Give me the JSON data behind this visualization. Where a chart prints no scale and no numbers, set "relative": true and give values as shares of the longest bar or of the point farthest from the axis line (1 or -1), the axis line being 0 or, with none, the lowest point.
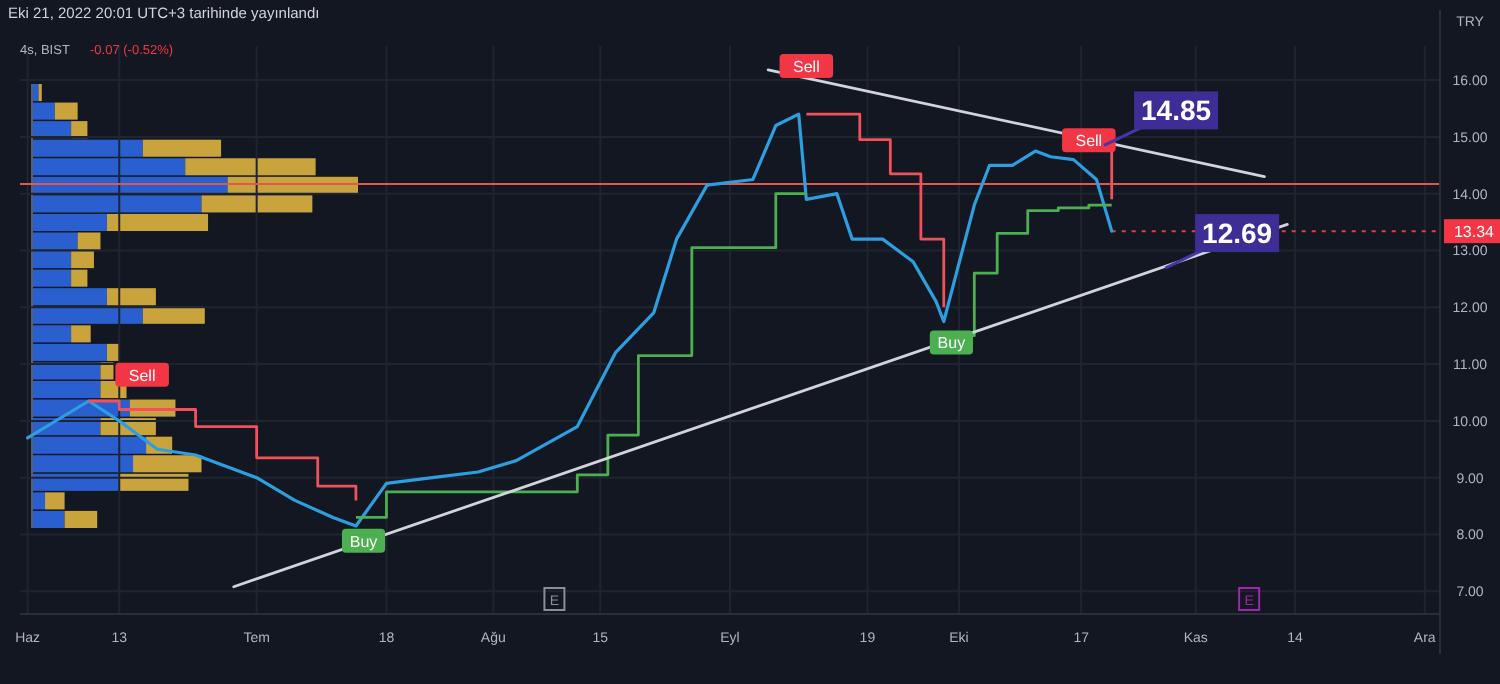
{
  "chart_data": [
    {
      "type": "line",
      "title": "Eki 21, 2022 20:01 UTC+3 tarihinde yayınlandı",
      "subtitle": "4s, BIST",
      "ylabel": "TRY",
      "annotations": [
        "-0.07 (-0.52%)",
        {
          "text": "14.85",
          "x": "2022-10-20",
          "y": 14.85
        },
        {
          "text": "12.69",
          "x": "2022-10-28",
          "y": 12.69
        },
        {
          "text": "E",
          "x": "2022-08-09"
        },
        {
          "text": "E",
          "x": "2022-11-08"
        }
      ],
      "xlim": [
        "2022-05-31",
        "2022-12-03"
      ],
      "xticks": [
        {
          "value": "2022-06-01",
          "label": "Haz"
        },
        {
          "value": "2022-06-13",
          "label": "13"
        },
        {
          "value": "2022-07-01",
          "label": "Tem"
        },
        {
          "value": "2022-07-18",
          "label": "18"
        },
        {
          "value": "2022-08-01",
          "label": "Ağu"
        },
        {
          "value": "2022-08-15",
          "label": "15"
        },
        {
          "value": "2022-09-01",
          "label": "Eyl"
        },
        {
          "value": "2022-09-19",
          "label": "19"
        },
        {
          "value": "2022-10-01",
          "label": "Eki"
        },
        {
          "value": "2022-10-17",
          "label": "17"
        },
        {
          "value": "2022-11-01",
          "label": "Kas"
        },
        {
          "value": "2022-11-14",
          "label": "14"
        },
        {
          "value": "2022-12-01",
          "label": "Ara"
        }
      ],
      "ylim": [
        6.6,
        16.6
      ],
      "yticks": [
        {
          "value": 7,
          "label": "7.00"
        },
        {
          "value": 8,
          "label": "8.00"
        },
        {
          "value": 9,
          "label": "9.00"
        },
        {
          "value": 10,
          "label": "10.00"
        },
        {
          "value": 11,
          "label": "11.00"
        },
        {
          "value": 12,
          "label": "12.00"
        },
        {
          "value": 13,
          "label": "13.00"
        },
        {
          "value": 14,
          "label": "14.00"
        },
        {
          "value": 15,
          "label": "15.00"
        },
        {
          "value": 16,
          "label": "16.00"
        }
      ],
      "grid": true,
      "ref_lines": [
        {
          "axis": "y",
          "value": 14.17,
          "color": "#e0584f"
        },
        {
          "axis": "y",
          "value": 13.34,
          "label": "13.34",
          "color": "#f23645",
          "line_style": "dotted"
        }
      ],
      "series": [
        {
          "type": "line",
          "color": "#2d9fe0",
          "x": [
            "2022-06-01",
            "2022-06-09",
            "2022-06-13",
            "2022-06-18",
            "2022-06-23",
            "2022-07-01",
            "2022-07-06",
            "2022-07-11",
            "2022-07-14",
            "2022-07-18",
            "2022-07-24",
            "2022-07-30",
            "2022-08-04",
            "2022-08-12",
            "2022-08-17",
            "2022-08-22",
            "2022-08-25",
            "2022-08-29",
            "2022-09-04",
            "2022-09-07",
            "2022-09-10",
            "2022-09-11",
            "2022-09-15",
            "2022-09-17",
            "2022-09-21",
            "2022-09-25",
            "2022-09-28",
            "2022-09-29",
            "2022-10-03",
            "2022-10-05",
            "2022-10-08",
            "2022-10-11",
            "2022-10-13",
            "2022-10-16",
            "2022-10-19",
            "2022-10-21"
          ],
          "values": [
            9.7,
            10.35,
            10.0,
            9.5,
            9.4,
            9.0,
            8.6,
            8.3,
            8.15,
            8.9,
            9.0,
            9.1,
            9.3,
            9.9,
            11.2,
            11.9,
            13.2,
            14.15,
            14.25,
            15.2,
            15.4,
            13.9,
            14.0,
            13.2,
            13.2,
            12.8,
            12.1,
            11.75,
            13.8,
            14.5,
            14.5,
            14.75,
            14.65,
            14.6,
            14.25,
            13.34
          ]
        },
        {
          "type": "step",
          "color": "#f0515a",
          "x": [
            "2022-06-09",
            "2022-06-13",
            "2022-06-23",
            "2022-07-01",
            "2022-07-09",
            "2022-07-14",
            "2022-07-20",
            "2022-09-11",
            "2022-09-17",
            "2022-09-18",
            "2022-09-22",
            "2022-09-26",
            "2022-09-29",
            "2022-10-05",
            "2022-10-19",
            "2022-10-21"
          ],
          "values": [
            10.35,
            10.2,
            9.9,
            9.35,
            8.85,
            8.6,
            null,
            15.4,
            15.4,
            14.95,
            14.35,
            13.2,
            12.0,
            null,
            14.85,
            13.9
          ]
        },
        {
          "type": "step",
          "color": "#4caf50",
          "x": [
            "2022-07-14",
            "2022-07-18",
            "2022-08-12",
            "2022-08-16",
            "2022-08-20",
            "2022-08-27",
            "2022-09-07",
            "2022-09-11",
            "2022-09-20",
            "2022-09-29",
            "2022-10-03",
            "2022-10-06",
            "2022-10-10",
            "2022-10-14",
            "2022-10-18",
            "2022-10-21"
          ],
          "values": [
            8.3,
            8.75,
            9.05,
            9.75,
            11.15,
            13.05,
            14.0,
            14.0,
            null,
            11.5,
            12.6,
            13.3,
            13.7,
            13.75,
            13.8,
            13.8
          ]
        },
        {
          "type": "line",
          "color": "#d1d4dc",
          "x": [
            "2022-06-28",
            "2022-11-13"
          ],
          "values": [
            7.08,
            13.46
          ]
        },
        {
          "type": "line",
          "color": "#d1d4dc",
          "x": [
            "2022-09-06",
            "2022-11-10"
          ],
          "values": [
            16.18,
            14.3
          ]
        },
        {
          "type": "scatter",
          "color": "#f23645",
          "marker": "square",
          "x": [
            "2022-06-16",
            "2022-09-11",
            "2022-10-18"
          ],
          "values": [
            10.81,
            16.25,
            14.94
          ],
          "value_labels": [
            "Sell",
            "Sell",
            "Sell"
          ]
        },
        {
          "type": "scatter",
          "color": "#4caf50",
          "marker": "square",
          "x": [
            "2022-07-15",
            "2022-09-30"
          ],
          "values": [
            7.89,
            11.38
          ],
          "value_labels": [
            "Buy",
            "Buy"
          ]
        }
      ]
    },
    {
      "type": "bar",
      "orientation": "horizontal",
      "stacked": true,
      "relative": true,
      "categories": [
        null,
        null,
        null,
        null,
        null,
        null,
        null,
        null,
        null,
        null,
        null,
        null,
        null,
        null,
        null,
        null,
        null,
        null,
        null,
        null,
        null,
        null,
        null,
        null
      ],
      "series": [
        {
          "color": "#2a5fd0",
          "values": [
            0.02,
            0.07,
            0.12,
            0.34,
            0.47,
            0.6,
            0.52,
            0.23,
            0.14,
            0.12,
            0.12,
            0.23,
            0.34,
            0.12,
            0.23,
            0.21,
            0.21,
            0.3,
            0.21,
            0.35,
            0.31,
            0.27,
            0.04,
            0.1
          ]
        },
        {
          "color": "#c9a43c",
          "values": [
            0.01,
            0.07,
            0.05,
            0.24,
            0.4,
            0.4,
            0.34,
            0.31,
            0.07,
            0.07,
            0.05,
            0.15,
            0.19,
            0.06,
            0.04,
            0.04,
            0.08,
            0.14,
            0.17,
            0.08,
            0.21,
            0.21,
            0.06,
            0.1
          ]
        }
      ]
    }
  ]
}
